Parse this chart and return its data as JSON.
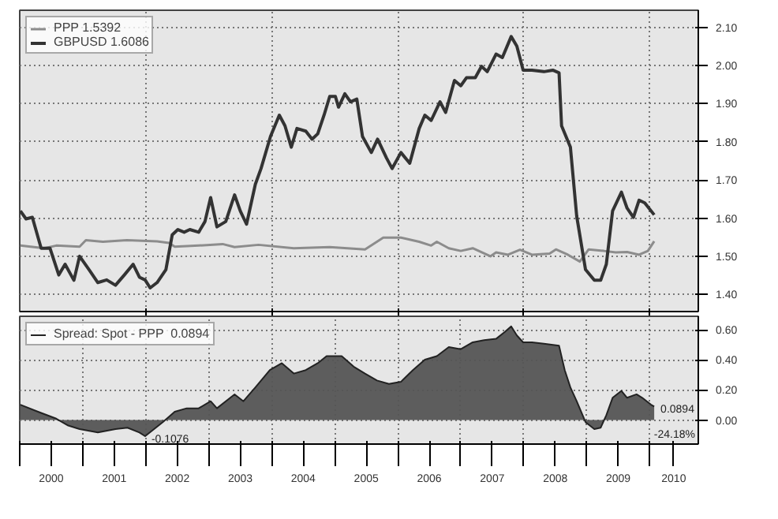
{
  "chart_data": [
    {
      "type": "line",
      "xlim": [
        2000,
        2010.77
      ],
      "xticks": [
        {
          "value": 2002,
          "label": null
        },
        {
          "value": 2004,
          "label": null
        },
        {
          "value": 2006,
          "label": null
        },
        {
          "value": 2008,
          "label": null
        },
        {
          "value": 2010,
          "label": null
        }
      ],
      "ylim": [
        1.355,
        2.145
      ],
      "yticks": [
        {
          "value": 1.4,
          "label": "1.40"
        },
        {
          "value": 1.5,
          "label": "1.50"
        },
        {
          "value": 1.6,
          "label": "1.60"
        },
        {
          "value": 1.7,
          "label": "1.70"
        },
        {
          "value": 1.8,
          "label": "1.80"
        },
        {
          "value": 1.9,
          "label": "1.90"
        },
        {
          "value": 2.0,
          "label": "2.00"
        },
        {
          "value": 2.1,
          "label": "2.10"
        }
      ],
      "tick_labels": "y",
      "grid": true,
      "legend": "top left",
      "series": [
        {
          "name": "PPP 1.5392",
          "color": "#8c8c8c",
          "x": [
            2000.01,
            2000.39,
            2000.58,
            2000.95,
            2001.05,
            2001.32,
            2001.7,
            2002.18,
            2002.37,
            2002.46,
            2002.84,
            2003.22,
            2003.41,
            2003.79,
            2004.35,
            2004.92,
            2005.48,
            2005.77,
            2006.05,
            2006.34,
            2006.53,
            2006.62,
            2006.81,
            2007.0,
            2007.19,
            2007.47,
            2007.56,
            2007.75,
            2007.94,
            2008.13,
            2008.41,
            2008.51,
            2008.7,
            2008.89,
            2009.03,
            2009.27,
            2009.46,
            2009.64,
            2009.83,
            2009.97,
            2010.07
          ],
          "values": [
            1.528,
            1.521,
            1.528,
            1.525,
            1.542,
            1.538,
            1.542,
            1.539,
            1.535,
            1.525,
            1.528,
            1.532,
            1.524,
            1.53,
            1.521,
            1.524,
            1.518,
            1.549,
            1.549,
            1.538,
            1.528,
            1.538,
            1.521,
            1.514,
            1.521,
            1.5,
            1.51,
            1.504,
            1.517,
            1.504,
            1.507,
            1.518,
            1.504,
            1.486,
            1.518,
            1.514,
            1.51,
            1.511,
            1.504,
            1.514,
            1.5392
          ]
        },
        {
          "name": "GBPUSD 1.6086",
          "color": "#333333",
          "x": [
            2000.01,
            2000.1,
            2000.2,
            2000.34,
            2000.48,
            2000.62,
            2000.72,
            2000.86,
            2000.95,
            2001.1,
            2001.24,
            2001.38,
            2001.52,
            2001.66,
            2001.8,
            2001.9,
            2001.99,
            2002.07,
            2002.18,
            2002.32,
            2002.42,
            2002.51,
            2002.61,
            2002.7,
            2002.84,
            2002.94,
            2003.03,
            2003.13,
            2003.27,
            2003.41,
            2003.5,
            2003.6,
            2003.74,
            2003.83,
            2003.98,
            2004.12,
            2004.21,
            2004.31,
            2004.4,
            2004.54,
            2004.64,
            2004.73,
            2004.83,
            2004.92,
            2005.01,
            2005.06,
            2005.16,
            2005.25,
            2005.35,
            2005.44,
            2005.58,
            2005.68,
            2005.82,
            2005.91,
            2006.05,
            2006.19,
            2006.34,
            2006.43,
            2006.53,
            2006.67,
            2006.76,
            2006.9,
            2007.0,
            2007.09,
            2007.23,
            2007.33,
            2007.42,
            2007.56,
            2007.66,
            2007.8,
            2007.89,
            2007.99,
            2008.13,
            2008.32,
            2008.46,
            2008.56,
            2008.6,
            2008.74,
            2008.84,
            2008.98,
            2009.12,
            2009.22,
            2009.31,
            2009.41,
            2009.55,
            2009.64,
            2009.74,
            2009.83,
            2009.92,
            2010.07
          ],
          "values": [
            1.619,
            1.598,
            1.602,
            1.521,
            1.521,
            1.451,
            1.479,
            1.437,
            1.5,
            1.465,
            1.431,
            1.438,
            1.424,
            1.451,
            1.479,
            1.445,
            1.438,
            1.417,
            1.431,
            1.465,
            1.556,
            1.57,
            1.563,
            1.57,
            1.563,
            1.591,
            1.654,
            1.577,
            1.591,
            1.661,
            1.619,
            1.584,
            1.689,
            1.73,
            1.814,
            1.87,
            1.842,
            1.786,
            1.835,
            1.828,
            1.807,
            1.821,
            1.87,
            1.919,
            1.919,
            1.891,
            1.926,
            1.905,
            1.912,
            1.814,
            1.772,
            1.807,
            1.758,
            1.73,
            1.772,
            1.744,
            1.835,
            1.87,
            1.856,
            1.905,
            1.877,
            1.961,
            1.947,
            1.968,
            1.968,
            1.998,
            1.984,
            2.03,
            2.021,
            2.076,
            2.051,
            1.988,
            1.988,
            1.984,
            1.988,
            1.981,
            1.842,
            1.786,
            1.605,
            1.465,
            1.437,
            1.437,
            1.479,
            1.619,
            1.668,
            1.626,
            1.602,
            1.647,
            1.64,
            1.6086
          ]
        }
      ]
    },
    {
      "type": "area",
      "xlim": [
        2000,
        2010.77
      ],
      "xticks": [
        {
          "value": 2000,
          "label": null
        },
        {
          "value": 2000.5,
          "label": "2000"
        },
        {
          "value": 2001,
          "label": null
        },
        {
          "value": 2001.5,
          "label": "2001"
        },
        {
          "value": 2002,
          "label": null
        },
        {
          "value": 2002.5,
          "label": "2002"
        },
        {
          "value": 2003,
          "label": null
        },
        {
          "value": 2003.5,
          "label": "2003"
        },
        {
          "value": 2004,
          "label": null
        },
        {
          "value": 2004.5,
          "label": "2004"
        },
        {
          "value": 2005,
          "label": null
        },
        {
          "value": 2005.5,
          "label": "2005"
        },
        {
          "value": 2006,
          "label": null
        },
        {
          "value": 2006.5,
          "label": "2006"
        },
        {
          "value": 2007,
          "label": null
        },
        {
          "value": 2007.5,
          "label": "2007"
        },
        {
          "value": 2008,
          "label": null
        },
        {
          "value": 2008.5,
          "label": "2008"
        },
        {
          "value": 2009,
          "label": null
        },
        {
          "value": 2009.5,
          "label": "2009"
        },
        {
          "value": 2010,
          "label": null
        },
        {
          "value": 2010.38,
          "label": "2010"
        }
      ],
      "ylim": [
        -0.16,
        0.69
      ],
      "yticks": [
        {
          "value": 0,
          "label": "0.00"
        },
        {
          "value": 0.2,
          "label": "0.20"
        },
        {
          "value": 0.4,
          "label": "0.40"
        },
        {
          "value": 0.6,
          "label": "0.60"
        }
      ],
      "grid": true,
      "legend": "top left",
      "annotations": [
        {
          "text": "-0.1076",
          "x": 2001.99,
          "y": -0.1076
        },
        {
          "text": "0.0894",
          "x": 2010.07,
          "y": 0.0894
        },
        "-24.18%"
      ],
      "series": [
        {
          "name": "Spread: Spot - PPP  0.0894",
          "color": "#555555",
          "x": [
            2000.01,
            2000.29,
            2000.58,
            2000.77,
            2000.95,
            2001.24,
            2001.52,
            2001.71,
            2001.9,
            2001.99,
            2002.27,
            2002.46,
            2002.65,
            2002.84,
            2003.03,
            2003.13,
            2003.41,
            2003.55,
            2003.74,
            2003.97,
            2004.16,
            2004.35,
            2004.54,
            2004.73,
            2004.87,
            2005.11,
            2005.3,
            2005.48,
            2005.67,
            2005.86,
            2006.05,
            2006.24,
            2006.43,
            2006.62,
            2006.81,
            2007.0,
            2007.19,
            2007.37,
            2007.56,
            2007.7,
            2007.8,
            2007.89,
            2007.99,
            2008.13,
            2008.32,
            2008.56,
            2008.65,
            2008.74,
            2008.84,
            2008.98,
            2009.12,
            2009.22,
            2009.31,
            2009.41,
            2009.55,
            2009.64,
            2009.79,
            2009.88,
            2010.02,
            2010.07
          ],
          "values": [
            0.102,
            0.055,
            0.009,
            -0.037,
            -0.06,
            -0.083,
            -0.06,
            -0.051,
            -0.083,
            -0.1076,
            -0.014,
            0.055,
            0.078,
            0.078,
            0.125,
            0.078,
            0.171,
            0.125,
            0.217,
            0.332,
            0.378,
            0.309,
            0.332,
            0.378,
            0.425,
            0.425,
            0.355,
            0.309,
            0.263,
            0.24,
            0.254,
            0.332,
            0.401,
            0.425,
            0.485,
            0.471,
            0.517,
            0.531,
            0.54,
            0.586,
            0.623,
            0.563,
            0.517,
            0.517,
            0.508,
            0.494,
            0.332,
            0.217,
            0.125,
            -0.014,
            -0.06,
            -0.051,
            0.032,
            0.148,
            0.194,
            0.148,
            0.171,
            0.148,
            0.102,
            0.0894
          ]
        }
      ]
    }
  ]
}
